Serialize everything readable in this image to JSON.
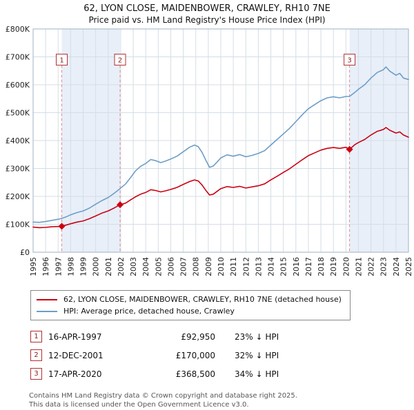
{
  "chart_data": {
    "type": "line",
    "title": "62, LYON CLOSE, MAIDENBOWER, CRAWLEY, RH10 7NE",
    "subtitle": "Price paid vs. HM Land Registry's House Price Index (HPI)",
    "x_range": [
      1995,
      2025
    ],
    "y_range": [
      0,
      800
    ],
    "unit": "GBP thousands",
    "grid": true,
    "legend_position": "bottom",
    "y_ticks": [
      {
        "v": 0,
        "label": "£0"
      },
      {
        "v": 100,
        "label": "£100K"
      },
      {
        "v": 200,
        "label": "£200K"
      },
      {
        "v": 300,
        "label": "£300K"
      },
      {
        "v": 400,
        "label": "£400K"
      },
      {
        "v": 500,
        "label": "£500K"
      },
      {
        "v": 600,
        "label": "£600K"
      },
      {
        "v": 700,
        "label": "£700K"
      },
      {
        "v": 800,
        "label": "£800K"
      }
    ],
    "x_ticks": [
      1995,
      1996,
      1997,
      1998,
      1999,
      2000,
      2001,
      2002,
      2003,
      2004,
      2005,
      2006,
      2007,
      2008,
      2009,
      2010,
      2011,
      2012,
      2013,
      2014,
      2015,
      2016,
      2017,
      2018,
      2019,
      2020,
      2021,
      2022,
      2023,
      2024,
      2025
    ],
    "colors": {
      "property": "#cc0011",
      "hpi": "#6d9dc6",
      "band": "#e8eff9",
      "grid": "#d4dde6",
      "sale_line": "#e38a8a",
      "border": "#9fb2c4"
    },
    "ownership_bands": [
      [
        1997.29,
        2001.95
      ],
      [
        2020.29,
        2025
      ]
    ],
    "marker_label_y": 690,
    "series": [
      {
        "name": "62, LYON CLOSE, MAIDENBOWER, CRAWLEY, RH10 7NE (detached house)",
        "color_key": "property",
        "points": [
          [
            1995.0,
            90
          ],
          [
            1995.5,
            88
          ],
          [
            1996.0,
            89
          ],
          [
            1996.5,
            91
          ],
          [
            1997.0,
            92
          ],
          [
            1997.29,
            93
          ],
          [
            1997.7,
            98
          ],
          [
            1998.0,
            102
          ],
          [
            1998.5,
            108
          ],
          [
            1999.0,
            112
          ],
          [
            1999.5,
            120
          ],
          [
            2000.0,
            130
          ],
          [
            2000.5,
            140
          ],
          [
            2001.0,
            148
          ],
          [
            2001.5,
            159
          ],
          [
            2001.95,
            170
          ],
          [
            2002.4,
            176
          ],
          [
            2002.8,
            188
          ],
          [
            2003.2,
            199
          ],
          [
            2003.6,
            208
          ],
          [
            2004.0,
            214
          ],
          [
            2004.4,
            224
          ],
          [
            2004.8,
            221
          ],
          [
            2005.2,
            216
          ],
          [
            2005.6,
            220
          ],
          [
            2006.0,
            225
          ],
          [
            2006.5,
            232
          ],
          [
            2007.0,
            243
          ],
          [
            2007.5,
            253
          ],
          [
            2007.9,
            259
          ],
          [
            2008.2,
            255
          ],
          [
            2008.5,
            241
          ],
          [
            2008.8,
            222
          ],
          [
            2009.1,
            205
          ],
          [
            2009.4,
            208
          ],
          [
            2009.7,
            218
          ],
          [
            2010.0,
            228
          ],
          [
            2010.5,
            235
          ],
          [
            2011.0,
            232
          ],
          [
            2011.5,
            236
          ],
          [
            2012.0,
            230
          ],
          [
            2012.5,
            234
          ],
          [
            2013.0,
            238
          ],
          [
            2013.5,
            245
          ],
          [
            2014.0,
            259
          ],
          [
            2014.5,
            272
          ],
          [
            2015.0,
            286
          ],
          [
            2015.5,
            299
          ],
          [
            2016.0,
            315
          ],
          [
            2016.5,
            331
          ],
          [
            2017.0,
            346
          ],
          [
            2017.5,
            356
          ],
          [
            2018.0,
            366
          ],
          [
            2018.5,
            372
          ],
          [
            2019.0,
            375
          ],
          [
            2019.5,
            372
          ],
          [
            2020.0,
            376
          ],
          [
            2020.29,
            368.5
          ],
          [
            2020.7,
            385
          ],
          [
            2021.0,
            393
          ],
          [
            2021.5,
            404
          ],
          [
            2022.0,
            420
          ],
          [
            2022.5,
            433
          ],
          [
            2023.0,
            440
          ],
          [
            2023.2,
            447
          ],
          [
            2023.5,
            437
          ],
          [
            2024.0,
            427
          ],
          [
            2024.3,
            431
          ],
          [
            2024.6,
            420
          ],
          [
            2025.0,
            412
          ]
        ]
      },
      {
        "name": "HPI: Average price, detached house, Crawley",
        "color_key": "hpi",
        "points": [
          [
            1995.0,
            108
          ],
          [
            1995.5,
            107
          ],
          [
            1996.0,
            110
          ],
          [
            1996.5,
            114
          ],
          [
            1997.0,
            118
          ],
          [
            1997.29,
            121
          ],
          [
            1997.7,
            128
          ],
          [
            1998.0,
            134
          ],
          [
            1998.5,
            142
          ],
          [
            1999.0,
            148
          ],
          [
            1999.5,
            158
          ],
          [
            2000.0,
            172
          ],
          [
            2000.5,
            185
          ],
          [
            2001.0,
            196
          ],
          [
            2001.5,
            212
          ],
          [
            2001.95,
            228
          ],
          [
            2002.4,
            245
          ],
          [
            2002.8,
            268
          ],
          [
            2003.2,
            292
          ],
          [
            2003.6,
            308
          ],
          [
            2004.0,
            318
          ],
          [
            2004.4,
            332
          ],
          [
            2004.8,
            328
          ],
          [
            2005.2,
            321
          ],
          [
            2005.6,
            327
          ],
          [
            2006.0,
            334
          ],
          [
            2006.5,
            344
          ],
          [
            2007.0,
            360
          ],
          [
            2007.5,
            376
          ],
          [
            2007.9,
            384
          ],
          [
            2008.2,
            378
          ],
          [
            2008.5,
            358
          ],
          [
            2008.8,
            330
          ],
          [
            2009.1,
            304
          ],
          [
            2009.4,
            309
          ],
          [
            2009.7,
            323
          ],
          [
            2010.0,
            338
          ],
          [
            2010.5,
            349
          ],
          [
            2011.0,
            344
          ],
          [
            2011.5,
            350
          ],
          [
            2012.0,
            342
          ],
          [
            2012.5,
            347
          ],
          [
            2013.0,
            354
          ],
          [
            2013.5,
            364
          ],
          [
            2014.0,
            384
          ],
          [
            2014.5,
            404
          ],
          [
            2015.0,
            424
          ],
          [
            2015.5,
            444
          ],
          [
            2016.0,
            468
          ],
          [
            2016.5,
            492
          ],
          [
            2017.0,
            514
          ],
          [
            2017.5,
            529
          ],
          [
            2018.0,
            543
          ],
          [
            2018.5,
            553
          ],
          [
            2019.0,
            557
          ],
          [
            2019.5,
            553
          ],
          [
            2020.0,
            558
          ],
          [
            2020.29,
            558
          ],
          [
            2020.7,
            572
          ],
          [
            2021.0,
            584
          ],
          [
            2021.5,
            600
          ],
          [
            2022.0,
            624
          ],
          [
            2022.5,
            644
          ],
          [
            2023.0,
            654
          ],
          [
            2023.2,
            664
          ],
          [
            2023.5,
            649
          ],
          [
            2024.0,
            634
          ],
          [
            2024.3,
            641
          ],
          [
            2024.6,
            624
          ],
          [
            2025.0,
            619
          ]
        ]
      }
    ],
    "sales": [
      {
        "n": 1,
        "x": 1997.29,
        "y": 92.95,
        "date": "16-APR-1997",
        "price": "£92,950",
        "vs_hpi": "23% ↓ HPI"
      },
      {
        "n": 2,
        "x": 2001.95,
        "y": 170,
        "date": "12-DEC-2001",
        "price": "£170,000",
        "vs_hpi": "32% ↓ HPI"
      },
      {
        "n": 3,
        "x": 2020.29,
        "y": 368.5,
        "date": "17-APR-2020",
        "price": "£368,500",
        "vs_hpi": "34% ↓ HPI"
      }
    ]
  },
  "footer": {
    "line1": "Contains HM Land Registry data © Crown copyright and database right 2025.",
    "line2": "This data is licensed under the Open Government Licence v3.0."
  }
}
